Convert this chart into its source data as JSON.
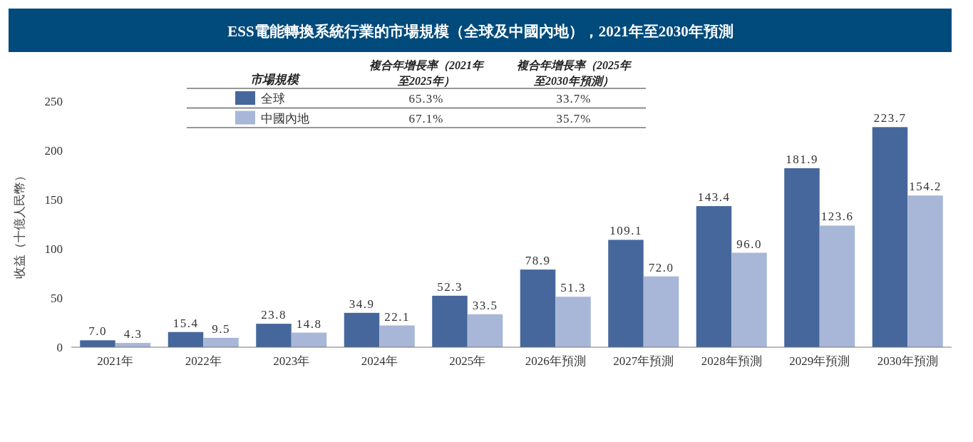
{
  "chart_data": {
    "type": "bar",
    "title": "ESS電能轉換系統行業的市場規模（全球及中國內地），2021年至2030年預測",
    "ylabel": "收益（十億人民幣）",
    "legend_title": "市場規模",
    "legend": "top left",
    "ylim": [
      0,
      250
    ],
    "yticks": [
      0,
      50,
      100,
      150,
      200,
      250
    ],
    "categories": [
      "2021年",
      "2022年",
      "2023年",
      "2024年",
      "2025年",
      "2026年預測",
      "2027年預測",
      "2028年預測",
      "2029年預測",
      "2030年預測"
    ],
    "series": [
      {
        "name": "全球",
        "color": "#46679b",
        "values": [
          7.0,
          15.4,
          23.8,
          34.9,
          52.3,
          78.9,
          109.1,
          143.4,
          181.9,
          223.7
        ],
        "value_labels": [
          "7.0",
          "15.4",
          "23.8",
          "34.9",
          "52.3",
          "78.9",
          "109.1",
          "143.4",
          "181.9",
          "223.7"
        ]
      },
      {
        "name": "中國內地",
        "color": "#a8b7d7",
        "values": [
          4.3,
          9.5,
          14.8,
          22.1,
          33.5,
          51.3,
          72.0,
          96.0,
          123.6,
          154.2
        ],
        "value_labels": [
          "4.3",
          "9.5",
          "14.8",
          "22.1",
          "33.5",
          "51.3",
          "72.0",
          "96.0",
          "123.6",
          "154.2"
        ]
      }
    ],
    "annotations": [
      "複合年增長率（2021年至2025年）",
      "複合年增長率（2025年至2030年預測）",
      "65.3%",
      "33.7%",
      "67.1%",
      "35.7%"
    ]
  }
}
